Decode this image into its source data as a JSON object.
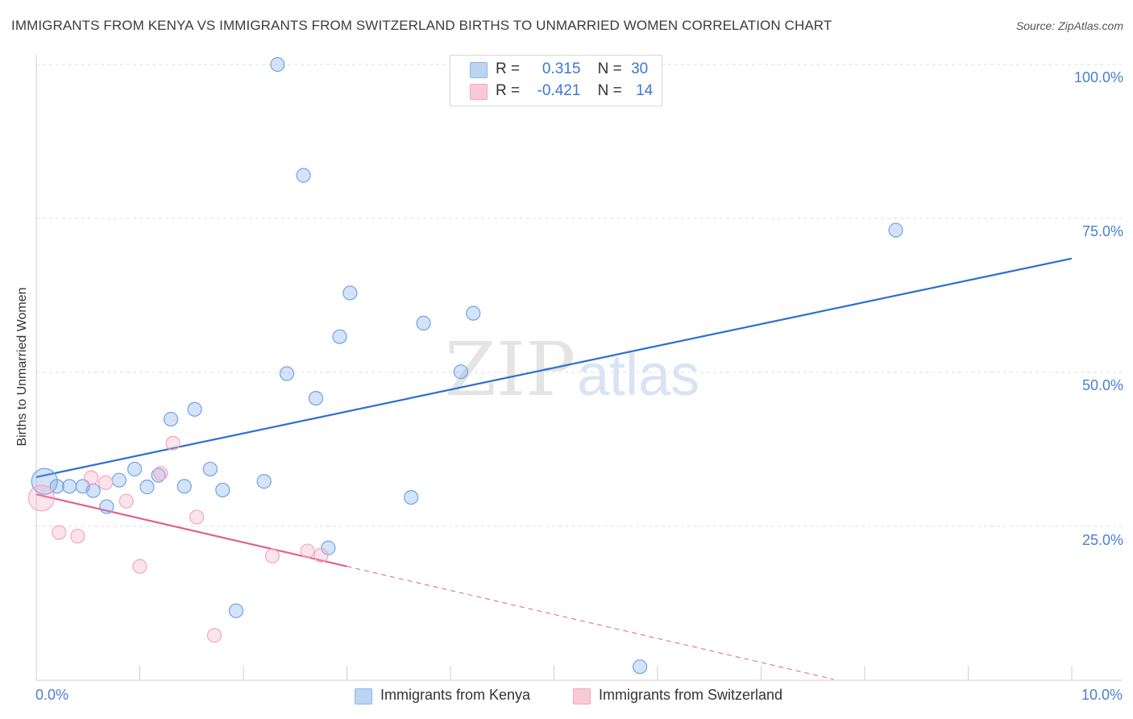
{
  "chart_data": {
    "type": "scatter",
    "title": "IMMIGRANTS FROM KENYA VS IMMIGRANTS FROM SWITZERLAND BIRTHS TO UNMARRIED WOMEN CORRELATION CHART",
    "source": "Source: ZipAtlas.com",
    "xlabel": "",
    "ylabel": "Births to Unmarried Women",
    "xlim": [
      0,
      10
    ],
    "ylim": [
      0,
      100
    ],
    "x_tick_labels": [
      "0.0%",
      "10.0%"
    ],
    "y_tick_labels": [
      "100.0%",
      "75.0%",
      "50.0%",
      "25.0%"
    ],
    "watermark": {
      "zip": "ZIP",
      "atlas": "atlas"
    },
    "series": [
      {
        "name": "Immigrants from Kenya",
        "color": "#6fa3e8",
        "line_color": "#2d6fcf",
        "r_label": "R =",
        "r_value": "0.315",
        "n_label": "N =",
        "n_value": "30",
        "trend": {
          "x0": 0,
          "y0": 33.0,
          "x1": 10,
          "y1": 68.5,
          "dashed_to": null
        },
        "points": [
          {
            "x": 0.08,
            "y": 32.3,
            "big": true
          },
          {
            "x": 0.2,
            "y": 31.5
          },
          {
            "x": 0.32,
            "y": 31.5
          },
          {
            "x": 0.45,
            "y": 31.5
          },
          {
            "x": 0.55,
            "y": 30.8
          },
          {
            "x": 0.68,
            "y": 28.2
          },
          {
            "x": 0.8,
            "y": 32.5
          },
          {
            "x": 0.95,
            "y": 34.3
          },
          {
            "x": 1.07,
            "y": 31.4
          },
          {
            "x": 1.18,
            "y": 33.3
          },
          {
            "x": 1.3,
            "y": 42.4
          },
          {
            "x": 1.43,
            "y": 31.5
          },
          {
            "x": 1.53,
            "y": 44.0
          },
          {
            "x": 1.68,
            "y": 34.3
          },
          {
            "x": 1.8,
            "y": 30.9
          },
          {
            "x": 1.93,
            "y": 11.3
          },
          {
            "x": 2.2,
            "y": 32.3
          },
          {
            "x": 2.33,
            "y": 100.0
          },
          {
            "x": 2.42,
            "y": 49.8
          },
          {
            "x": 2.58,
            "y": 82.0
          },
          {
            "x": 2.7,
            "y": 45.8
          },
          {
            "x": 2.82,
            "y": 21.5
          },
          {
            "x": 2.93,
            "y": 55.8
          },
          {
            "x": 3.03,
            "y": 62.9
          },
          {
            "x": 3.62,
            "y": 29.7
          },
          {
            "x": 3.74,
            "y": 58.0
          },
          {
            "x": 4.1,
            "y": 50.1
          },
          {
            "x": 4.22,
            "y": 59.6
          },
          {
            "x": 5.83,
            "y": 2.2
          },
          {
            "x": 8.3,
            "y": 73.1
          }
        ]
      },
      {
        "name": "Immigrants from Switzerland",
        "color": "#f4a5c0",
        "line_color": "#e06090",
        "r_label": "R =",
        "r_value": "-0.421",
        "n_label": "N =",
        "n_value": "14",
        "trend": {
          "x0": 0,
          "y0": 30.2,
          "x1": 3.0,
          "y1": 18.5,
          "dashed_to": 7.7
        },
        "points": [
          {
            "x": 0.05,
            "y": 29.6,
            "big": true
          },
          {
            "x": 0.22,
            "y": 24.0
          },
          {
            "x": 0.4,
            "y": 23.4
          },
          {
            "x": 0.53,
            "y": 32.9
          },
          {
            "x": 0.67,
            "y": 32.1
          },
          {
            "x": 0.87,
            "y": 29.1
          },
          {
            "x": 1.0,
            "y": 18.5
          },
          {
            "x": 1.2,
            "y": 33.6
          },
          {
            "x": 1.32,
            "y": 38.5
          },
          {
            "x": 1.55,
            "y": 26.5
          },
          {
            "x": 1.72,
            "y": 7.3
          },
          {
            "x": 2.28,
            "y": 20.2
          },
          {
            "x": 2.62,
            "y": 21.0
          },
          {
            "x": 2.75,
            "y": 20.3
          }
        ]
      }
    ]
  }
}
